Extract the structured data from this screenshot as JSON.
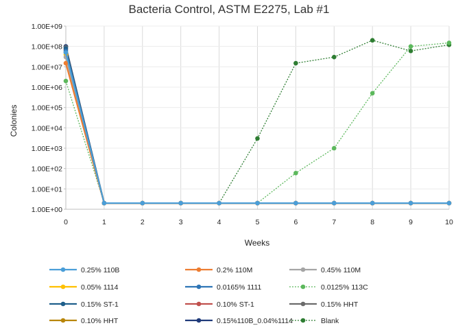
{
  "chart_data": {
    "type": "line",
    "title": "Bacteria Control, ASTM E2275, Lab #1",
    "xlabel": "Weeks",
    "ylabel": "Colonies",
    "yscale": "log",
    "ylim": [
      1,
      1000000000
    ],
    "xlim": [
      0,
      10
    ],
    "x_ticks": [
      "0",
      "1",
      "2",
      "3",
      "4",
      "5",
      "6",
      "7",
      "8",
      "9",
      "10"
    ],
    "y_ticks": [
      "1.00E+00",
      "1.00E+01",
      "1.00E+02",
      "1.00E+03",
      "1.00E+04",
      "1.00E+05",
      "1.00E+06",
      "1.00E+07",
      "1.00E+08",
      "1.00E+09"
    ],
    "grid": "vertical",
    "legend_position": "bottom",
    "series": [
      {
        "name": "0.25% 110B",
        "color": "#4a9ed8",
        "style": "solid",
        "x": [
          0,
          1,
          2,
          3,
          4,
          5,
          6,
          7,
          8,
          9,
          10
        ],
        "y": [
          50000000,
          2,
          2,
          2,
          2,
          2,
          2,
          2,
          2,
          2,
          2
        ]
      },
      {
        "name": "0.2% 110M",
        "color": "#ed7d31",
        "style": "solid",
        "x": [
          0,
          1,
          2,
          3,
          4,
          5,
          6,
          7,
          8,
          9,
          10
        ],
        "y": [
          15000000,
          2,
          2,
          2,
          2,
          2,
          2,
          2,
          2,
          2,
          2
        ]
      },
      {
        "name": "0.45% 110M",
        "color": "#a5a5a5",
        "style": "solid",
        "x": [
          0,
          1,
          2,
          3,
          4,
          5,
          6,
          7,
          8,
          9,
          10
        ],
        "y": [
          30000000,
          2,
          2,
          2,
          2,
          2,
          2,
          2,
          2,
          2,
          2
        ]
      },
      {
        "name": "0.05% 1114",
        "color": "#ffc000",
        "style": "solid",
        "x": [
          0,
          1,
          2,
          3,
          4,
          5,
          6,
          7,
          8,
          9,
          10
        ],
        "y": [
          40000000,
          2,
          2,
          2,
          2,
          2,
          2,
          2,
          2,
          2,
          2
        ]
      },
      {
        "name": "0.0165% 1111",
        "color": "#2e75b6",
        "style": "solid",
        "x": [
          0,
          1,
          2,
          3,
          4,
          5,
          6,
          7,
          8,
          9,
          10
        ],
        "y": [
          60000000,
          2,
          2,
          2,
          2,
          2,
          2,
          2,
          2,
          2,
          2
        ]
      },
      {
        "name": "0.0125% 113C",
        "color": "#5cb85c",
        "style": "dotted",
        "x": [
          0,
          1,
          2,
          3,
          4,
          5,
          6,
          7,
          8,
          9,
          10
        ],
        "y": [
          2000000,
          2,
          2,
          2,
          2,
          2,
          60,
          1000,
          500000,
          100000000,
          150000000
        ]
      },
      {
        "name": "0.15% ST-1",
        "color": "#1f5f8b",
        "style": "solid",
        "x": [
          0,
          1,
          2,
          3,
          4,
          5,
          6,
          7,
          8,
          9,
          10
        ],
        "y": [
          80000000,
          2,
          2,
          2,
          2,
          2,
          2,
          2,
          2,
          2,
          2
        ]
      },
      {
        "name": "0.10% ST-1",
        "color": "#c0504d",
        "style": "solid",
        "x": [
          0,
          1,
          2,
          3,
          4,
          5,
          6,
          7,
          8,
          9,
          10
        ],
        "y": [
          70000000,
          2,
          2,
          2,
          2,
          2,
          2,
          2,
          2,
          2,
          2
        ]
      },
      {
        "name": "0.15% HHT",
        "color": "#6b6b6b",
        "style": "solid",
        "x": [
          0,
          1,
          2,
          3,
          4,
          5,
          6,
          7,
          8,
          9,
          10
        ],
        "y": [
          90000000,
          2,
          2,
          2,
          2,
          2,
          2,
          2,
          2,
          2,
          2
        ]
      },
      {
        "name": "0.10% HHT",
        "color": "#b8860b",
        "style": "solid",
        "x": [
          0,
          1,
          2,
          3,
          4,
          5,
          6,
          7,
          8,
          9,
          10
        ],
        "y": [
          50000000,
          2,
          2,
          2,
          2,
          2,
          2,
          2,
          2,
          2,
          2
        ]
      },
      {
        "name": "0.15%110B_0.04%1114",
        "color": "#1f3a7a",
        "style": "solid",
        "x": [
          0,
          1,
          2,
          3,
          4,
          5,
          6,
          7,
          8,
          9,
          10
        ],
        "y": [
          100000000,
          2,
          2,
          2,
          2,
          2,
          2,
          2,
          2,
          2,
          2
        ]
      },
      {
        "name": "Blank",
        "color": "#2e7d32",
        "style": "dotted",
        "x": [
          0,
          1,
          2,
          3,
          4,
          5,
          6,
          7,
          8,
          9,
          10
        ],
        "y": [
          100000000,
          2,
          2,
          2,
          2,
          3000,
          15000000,
          30000000,
          200000000,
          60000000,
          120000000
        ]
      }
    ]
  }
}
